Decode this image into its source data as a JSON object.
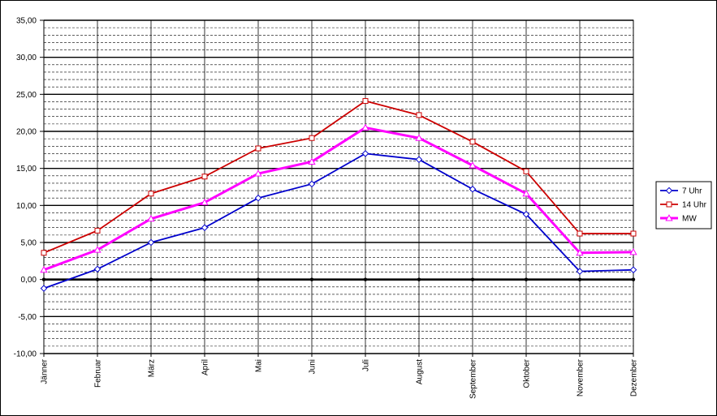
{
  "chart_data": {
    "type": "line",
    "title": "",
    "xlabel": "",
    "ylabel": "",
    "categories": [
      "Jänner",
      "Februar",
      "März",
      "April",
      "Mai",
      "Juni",
      "Juli",
      "August",
      "September",
      "Oktober",
      "November",
      "Dezember"
    ],
    "ylim": [
      -10,
      35
    ],
    "y_major_step": 5,
    "y_minor_step": 1,
    "y_tick_labels": [
      "-10,00",
      "-5,00",
      "0,00",
      "5,00",
      "10,00",
      "15,00",
      "20,00",
      "25,00",
      "30,00",
      "35,00"
    ],
    "grid": true,
    "legend_position": "right",
    "series": [
      {
        "name": "7 Uhr",
        "color": "#0000cc",
        "marker": "diamond",
        "values": [
          -1.2,
          1.4,
          5.0,
          7.0,
          11.0,
          12.9,
          17.0,
          16.2,
          12.2,
          8.8,
          1.1,
          1.3
        ]
      },
      {
        "name": "14 Uhr",
        "color": "#cc0000",
        "marker": "square",
        "values": [
          3.6,
          6.6,
          11.6,
          13.9,
          17.7,
          19.1,
          24.1,
          22.2,
          18.6,
          14.6,
          6.2,
          6.2
        ]
      },
      {
        "name": "MW",
        "color": "#ff00ff",
        "marker": "triangle",
        "values": [
          1.3,
          4.0,
          8.2,
          10.4,
          14.3,
          15.9,
          20.5,
          19.1,
          15.4,
          11.6,
          3.6,
          3.7
        ]
      }
    ]
  }
}
